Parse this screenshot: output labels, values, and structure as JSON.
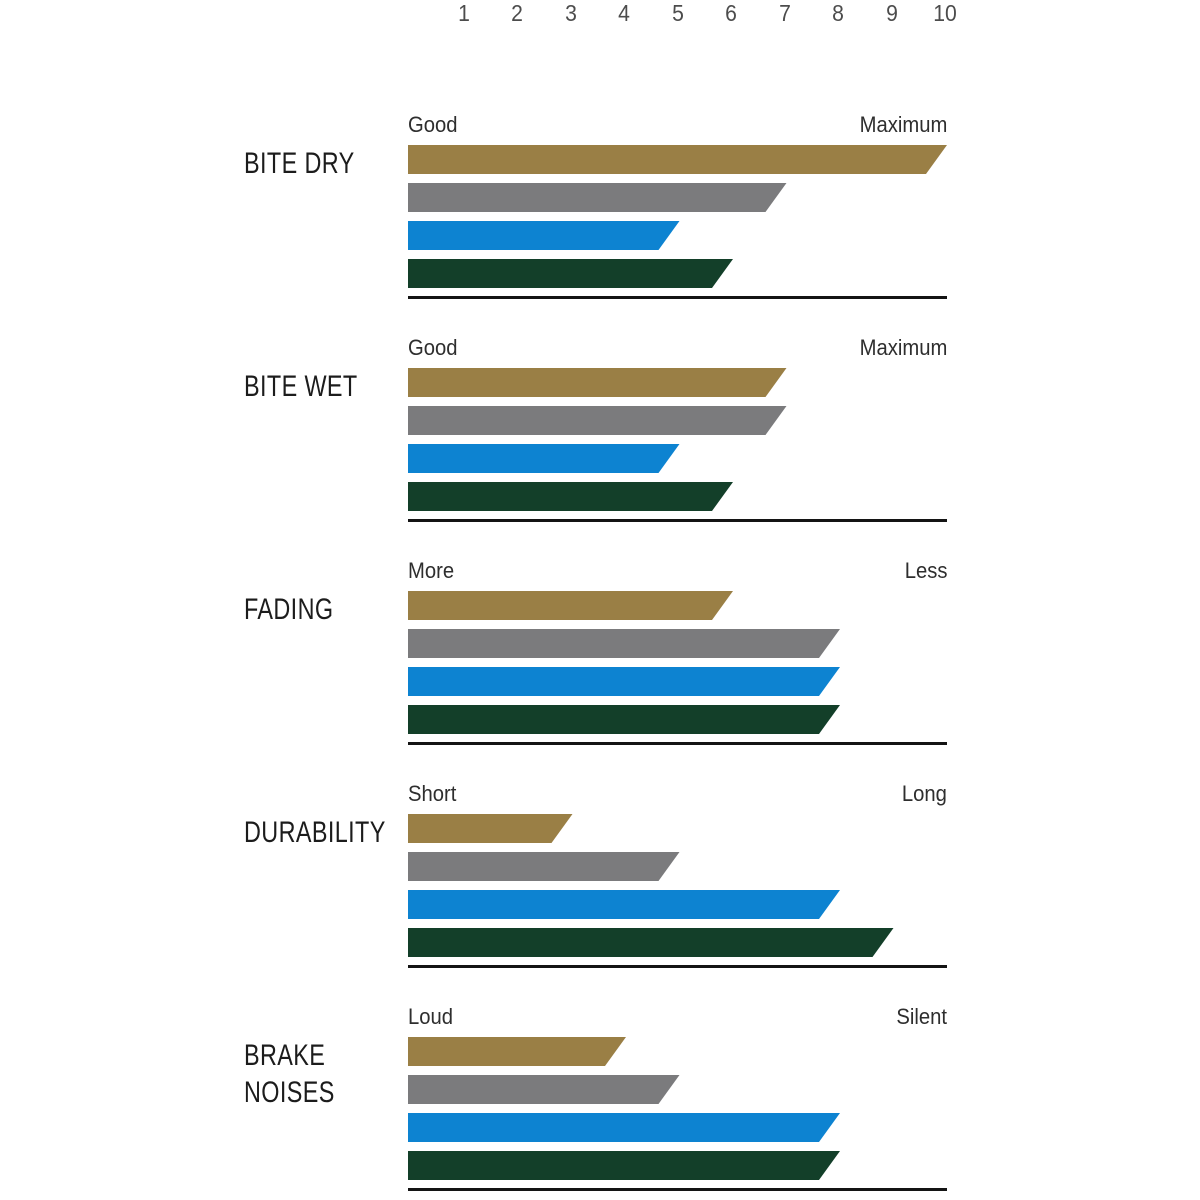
{
  "chart_data": {
    "type": "bar",
    "orientation": "horizontal",
    "title": "",
    "axis": {
      "min": 0,
      "max": 10,
      "ticks": [
        "1",
        "2",
        "3",
        "4",
        "5",
        "6",
        "7",
        "8",
        "9",
        "10"
      ],
      "position": "top",
      "grid": false
    },
    "legend": "none",
    "series": [
      {
        "name": "gold-series",
        "color": "#9a7f45"
      },
      {
        "name": "gray-series",
        "color": "#7b7b7d"
      },
      {
        "name": "blue-series",
        "color": "#0d83d1"
      },
      {
        "name": "green-series",
        "color": "#133f29"
      }
    ],
    "sections": [
      {
        "title": "BITE DRY",
        "title_lines": [
          "BITE DRY"
        ],
        "left_label": "Good",
        "right_label": "Maximum",
        "values": [
          10,
          7,
          5,
          6
        ]
      },
      {
        "title": "BITE WET",
        "title_lines": [
          "BITE WET"
        ],
        "left_label": "Good",
        "right_label": "Maximum",
        "values": [
          7,
          7,
          5,
          6
        ]
      },
      {
        "title": "FADING",
        "title_lines": [
          "FADING"
        ],
        "left_label": "More",
        "right_label": "Less",
        "values": [
          6,
          8,
          8,
          8
        ]
      },
      {
        "title": "DURABILITY",
        "title_lines": [
          "DURABILITY"
        ],
        "left_label": "Short",
        "right_label": "Long",
        "values": [
          3,
          5,
          8,
          9
        ]
      },
      {
        "title": "BRAKE NOISES",
        "title_lines": [
          "BRAKE",
          "NOISES"
        ],
        "left_label": "Loud",
        "right_label": "Silent",
        "values": [
          4,
          5,
          8,
          8
        ]
      }
    ],
    "colors": {
      "background": "#ffffff",
      "baseline": "#141414",
      "tick_text": "#4c4c4c",
      "label_text": "#2e2e2e",
      "title_text": "#1c1c1c"
    }
  }
}
